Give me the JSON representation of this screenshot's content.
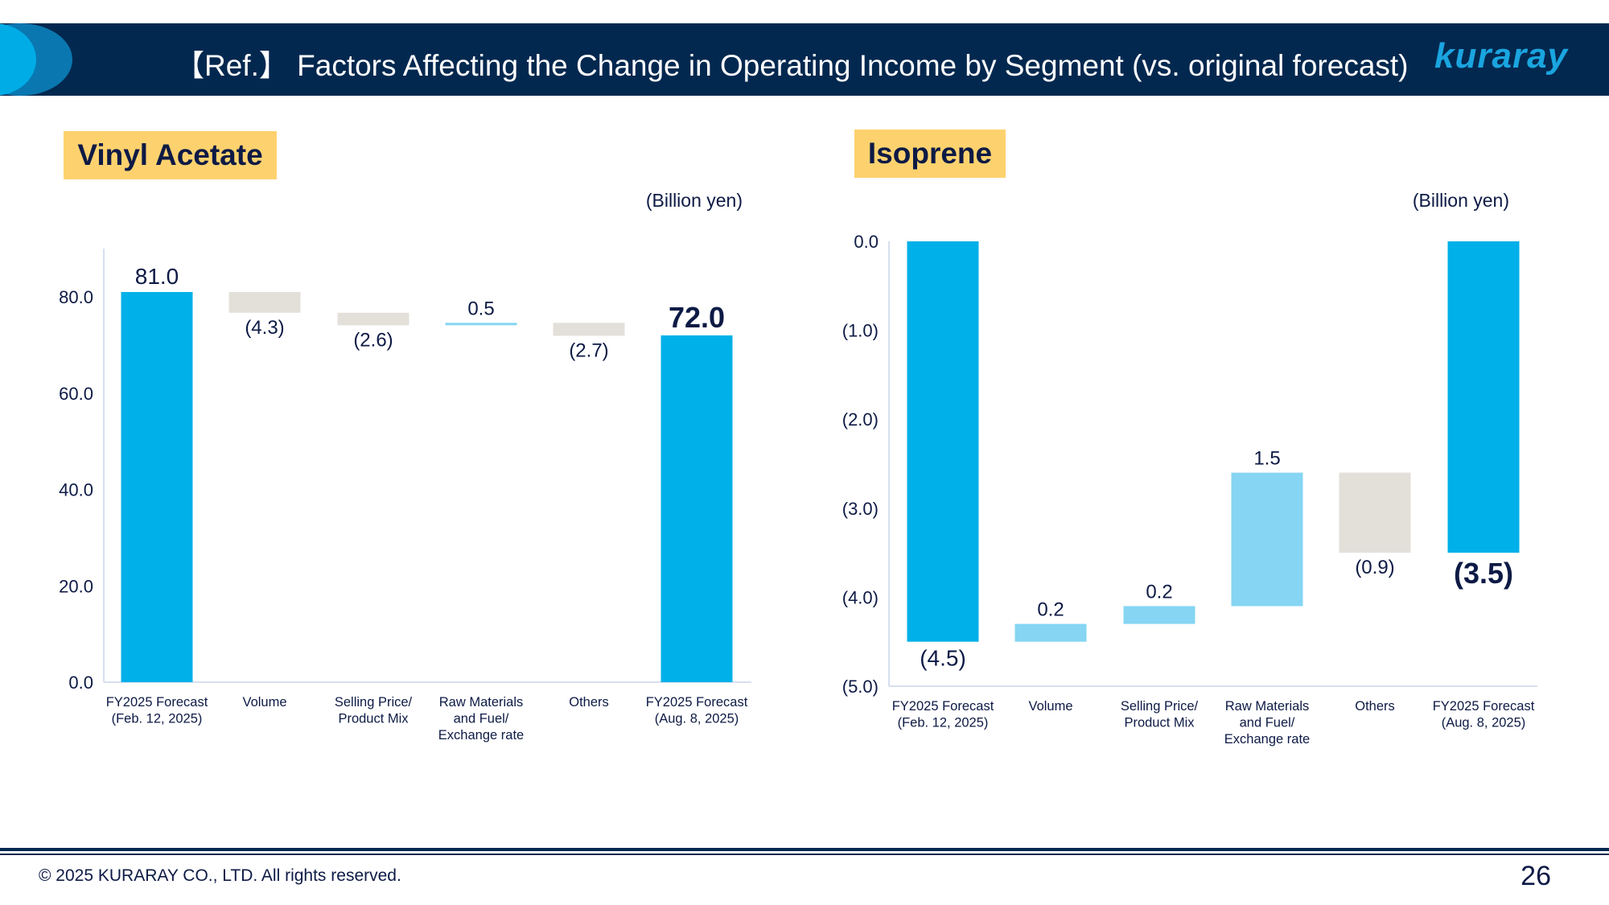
{
  "header": {
    "title": "【Ref.】 Factors Affecting the Change in Operating Income by Segment (vs. original forecast)",
    "logo": "kuraray"
  },
  "colors": {
    "total": "#00b0e8",
    "increase": "#85d5f3",
    "decrease": "#e3e0da",
    "navy": "#03284f",
    "label_bg": "#fdd26e"
  },
  "chart_data": [
    {
      "type": "waterfall",
      "title": "Vinyl Acetate",
      "unit_label": "(Billion yen)",
      "categories": [
        "FY2025 Forecast\n(Feb. 12, 2025)",
        "Volume",
        "Selling Price/\nProduct Mix",
        "Raw Materials\nand Fuel/\nExchange rate",
        "Others",
        "FY2025 Forecast\n(Aug. 8, 2025)"
      ],
      "kinds": [
        "total",
        "delta",
        "delta",
        "delta",
        "delta",
        "total"
      ],
      "values": [
        81.0,
        -4.3,
        -2.6,
        0.5,
        -2.7,
        72.0
      ],
      "data_labels": [
        "81.0",
        "(4.3)",
        "(2.6)",
        "0.5",
        "(2.7)",
        "72.0"
      ],
      "yticks": [
        "0.0",
        "20.0",
        "40.0",
        "60.0",
        "80.0"
      ],
      "ytick_values": [
        0,
        20,
        40,
        60,
        80
      ],
      "ylim": [
        0,
        90
      ],
      "grid": false
    },
    {
      "type": "waterfall",
      "title": "Isoprene",
      "unit_label": "(Billion yen)",
      "categories": [
        "FY2025 Forecast\n(Feb. 12, 2025)",
        "Volume",
        "Selling Price/\nProduct Mix",
        "Raw Materials\nand Fuel/\nExchange rate",
        "Others",
        "FY2025 Forecast\n(Aug. 8, 2025)"
      ],
      "kinds": [
        "total",
        "delta",
        "delta",
        "delta",
        "delta",
        "total"
      ],
      "values": [
        -4.5,
        0.2,
        0.2,
        1.5,
        -0.9,
        -3.5
      ],
      "data_labels": [
        "(4.5)",
        "0.2",
        "0.2",
        "1.5",
        "(0.9)",
        "(3.5)"
      ],
      "yticks": [
        "0.0",
        "(1.0)",
        "(2.0)",
        "(3.0)",
        "(4.0)",
        "(5.0)"
      ],
      "ytick_values": [
        0,
        -1,
        -2,
        -3,
        -4,
        -5
      ],
      "ylim": [
        -5,
        0
      ],
      "grid": false
    }
  ],
  "footer": {
    "copyright": "© 2025 KURARAY CO., LTD. All rights reserved.",
    "page_number": "26"
  }
}
